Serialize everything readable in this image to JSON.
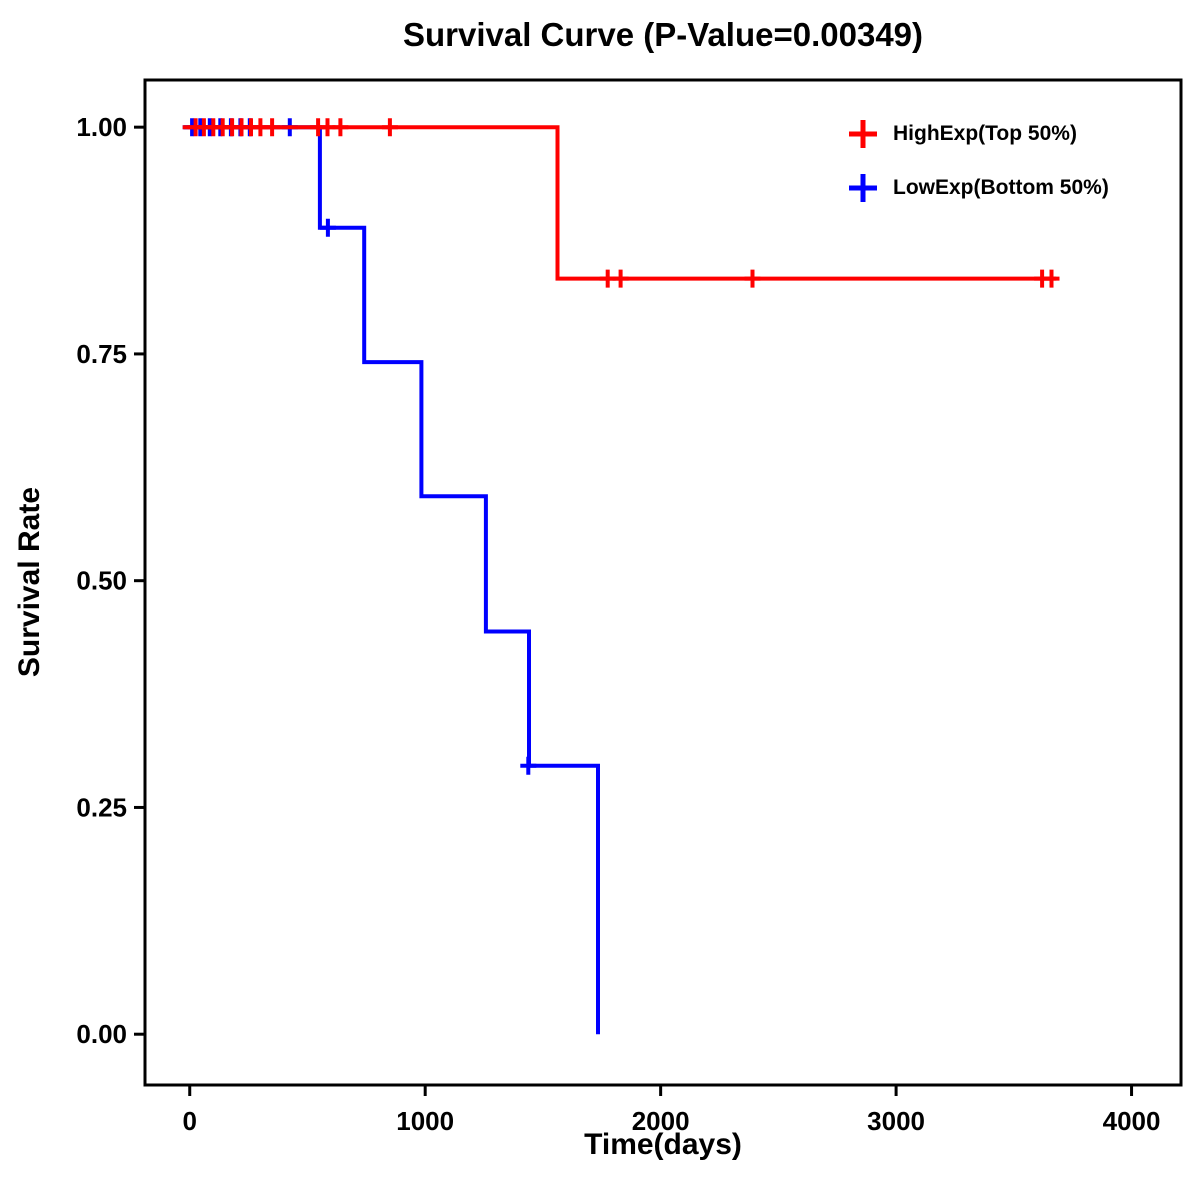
{
  "chart_data": {
    "type": "line",
    "subtype": "kaplan-meier-step",
    "title": "Survival Curve (P-Value=0.00349)",
    "xlabel": "Time(days)",
    "ylabel": "Survival Rate",
    "p_value": "0.00349",
    "xlim": [
      -190,
      4210
    ],
    "ylim": [
      -0.056,
      1.052
    ],
    "xticks": [
      0,
      1000,
      2000,
      3000,
      4000
    ],
    "xtick_labels": [
      "0",
      "1000",
      "2000",
      "3000",
      "4000"
    ],
    "yticks": [
      0.0,
      0.25,
      0.5,
      0.75,
      1.0
    ],
    "ytick_labels": [
      "0.00",
      "0.25",
      "0.50",
      "0.75",
      "1.00"
    ],
    "grid": false,
    "legend_position": "top-right",
    "series": [
      {
        "name": "HighExp(Top 50%)",
        "color": "#FF0000",
        "steps": [
          [
            -30,
            1.0
          ],
          [
            1562,
            1.0
          ],
          [
            1562,
            0.833
          ],
          [
            3680,
            0.833
          ]
        ],
        "censors": [
          [
            25,
            1.0
          ],
          [
            60,
            1.0
          ],
          [
            100,
            1.0
          ],
          [
            140,
            1.0
          ],
          [
            180,
            1.0
          ],
          [
            220,
            1.0
          ],
          [
            260,
            1.0
          ],
          [
            300,
            1.0
          ],
          [
            350,
            1.0
          ],
          [
            545,
            1.0
          ],
          [
            585,
            1.0
          ],
          [
            640,
            1.0
          ],
          [
            850,
            1.0
          ],
          [
            1775,
            0.833
          ],
          [
            1830,
            0.833
          ],
          [
            2390,
            0.833
          ],
          [
            3620,
            0.833
          ],
          [
            3660,
            0.833
          ]
        ]
      },
      {
        "name": "LowExp(Bottom 50%)",
        "color": "#0000FF",
        "steps": [
          [
            -30,
            1.0
          ],
          [
            553,
            1.0
          ],
          [
            553,
            0.889
          ],
          [
            741,
            0.889
          ],
          [
            741,
            0.741
          ],
          [
            984,
            0.741
          ],
          [
            984,
            0.593
          ],
          [
            1258,
            0.593
          ],
          [
            1258,
            0.444
          ],
          [
            1441,
            0.444
          ],
          [
            1441,
            0.296
          ],
          [
            1734,
            0.296
          ],
          [
            1734,
            0.0
          ]
        ],
        "censors": [
          [
            10,
            1.0
          ],
          [
            45,
            1.0
          ],
          [
            85,
            1.0
          ],
          [
            130,
            1.0
          ],
          [
            175,
            1.0
          ],
          [
            215,
            1.0
          ],
          [
            255,
            1.0
          ],
          [
            425,
            1.0
          ],
          [
            587,
            0.889
          ],
          [
            1438,
            0.296
          ]
        ]
      }
    ]
  }
}
